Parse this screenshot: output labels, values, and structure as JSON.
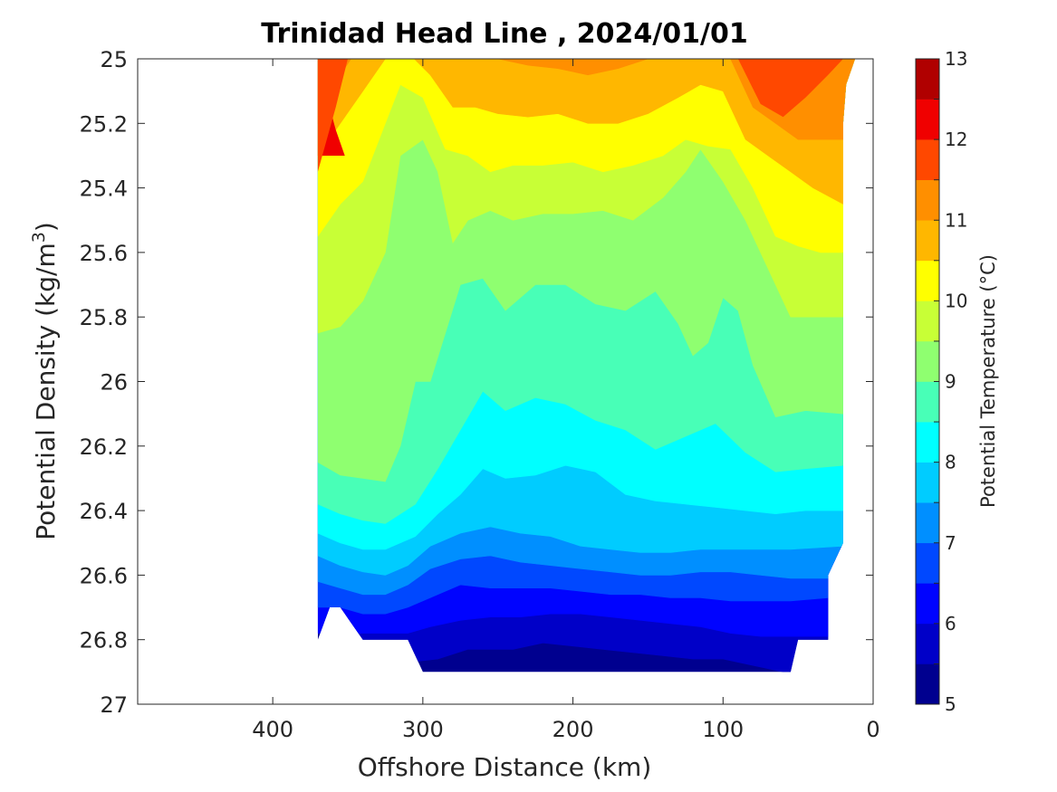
{
  "chart_data": {
    "type": "heatmap",
    "subtype": "filled-contour",
    "title": "Trinidad Head Line , 2024/01/01",
    "xlabel": "Offshore Distance (km)",
    "ylabel": "Potential Density (kg/m",
    "ylabel_superscript": "3",
    "ylabel_suffix": ")",
    "x_reversed": true,
    "y_reversed": true,
    "xlim": [
      490,
      0
    ],
    "ylim": [
      25,
      27
    ],
    "xticks": [
      400,
      300,
      200,
      100,
      0
    ],
    "xtick_labels": [
      "400",
      "300",
      "200",
      "100",
      "0"
    ],
    "yticks": [
      25,
      25.2,
      25.4,
      25.6,
      25.8,
      26,
      26.2,
      26.4,
      26.6,
      26.8,
      27
    ],
    "ytick_labels": [
      "25",
      "25.2",
      "25.4",
      "25.6",
      "25.8",
      "26",
      "26.2",
      "26.4",
      "26.6",
      "26.8",
      "27"
    ],
    "colorbar": {
      "label": "Potential Temperature (°C)",
      "range": [
        5,
        13
      ],
      "ticks": [
        5,
        6,
        7,
        8,
        9,
        10,
        11,
        12,
        13
      ],
      "tick_labels": [
        "5",
        "6",
        "7",
        "8",
        "9",
        "10",
        "11",
        "12",
        "13"
      ],
      "levels": [
        5,
        5.5,
        6,
        6.5,
        7,
        7.5,
        8,
        8.5,
        9,
        9.5,
        10,
        10.5,
        11,
        11.5,
        12,
        12.5,
        13
      ],
      "colors": [
        "#00008f",
        "#0000c8",
        "#0003ff",
        "#0048ff",
        "#008fff",
        "#00ccff",
        "#00ffff",
        "#48ffb7",
        "#8fff70",
        "#c8ff36",
        "#ffff00",
        "#ffb700",
        "#ff8f00",
        "#ff4800",
        "#f00000",
        "#b00000"
      ]
    },
    "data_extent": {
      "x_range_km": [
        20,
        370
      ],
      "density_range": [
        25,
        26.9
      ]
    },
    "boundaries": [
      {
        "level": 12.0,
        "points": [
          [
            370,
            25.0
          ],
          [
            365,
            25.1
          ],
          [
            358,
            25.22
          ],
          [
            352,
            25.3
          ]
        ]
      },
      {
        "level": 11.5,
        "points": [
          [
            350,
            25.0
          ],
          [
            358,
            25.15
          ],
          [
            364,
            25.25
          ],
          [
            370,
            25.35
          ]
        ]
      }
    ],
    "contours": [
      {
        "level": 5.5,
        "points": [
          [
            310,
            26.87
          ],
          [
            290,
            26.86
          ],
          [
            270,
            26.83
          ],
          [
            240,
            26.83
          ],
          [
            220,
            26.81
          ],
          [
            200,
            26.82
          ],
          [
            180,
            26.83
          ],
          [
            160,
            26.84
          ],
          [
            140,
            26.85
          ],
          [
            120,
            26.86
          ],
          [
            100,
            26.86
          ],
          [
            80,
            26.88
          ],
          [
            60,
            26.9
          ]
        ]
      },
      {
        "level": 6.0,
        "points": [
          [
            330,
            26.78
          ],
          [
            310,
            26.78
          ],
          [
            295,
            26.76
          ],
          [
            275,
            26.74
          ],
          [
            255,
            26.73
          ],
          [
            235,
            26.73
          ],
          [
            215,
            26.72
          ],
          [
            195,
            26.72
          ],
          [
            175,
            26.73
          ],
          [
            155,
            26.74
          ],
          [
            135,
            26.75
          ],
          [
            115,
            26.76
          ],
          [
            95,
            26.78
          ],
          [
            75,
            26.79
          ],
          [
            55,
            26.79
          ],
          [
            40,
            26.79
          ],
          [
            30,
            26.79
          ]
        ]
      },
      {
        "level": 6.5,
        "points": [
          [
            370,
            26.7
          ],
          [
            355,
            26.7
          ],
          [
            340,
            26.72
          ],
          [
            325,
            26.72
          ],
          [
            310,
            26.7
          ],
          [
            295,
            26.67
          ],
          [
            275,
            26.63
          ],
          [
            255,
            26.64
          ],
          [
            235,
            26.64
          ],
          [
            215,
            26.64
          ],
          [
            195,
            26.65
          ],
          [
            175,
            26.66
          ],
          [
            155,
            26.66
          ],
          [
            135,
            26.67
          ],
          [
            115,
            26.67
          ],
          [
            95,
            26.68
          ],
          [
            75,
            26.68
          ],
          [
            55,
            26.68
          ],
          [
            30,
            26.67
          ]
        ]
      },
      {
        "level": 7.0,
        "points": [
          [
            370,
            26.62
          ],
          [
            355,
            26.64
          ],
          [
            340,
            26.66
          ],
          [
            325,
            26.66
          ],
          [
            310,
            26.63
          ],
          [
            295,
            26.58
          ],
          [
            275,
            26.55
          ],
          [
            255,
            26.54
          ],
          [
            235,
            26.56
          ],
          [
            215,
            26.57
          ],
          [
            195,
            26.58
          ],
          [
            175,
            26.59
          ],
          [
            155,
            26.6
          ],
          [
            135,
            26.6
          ],
          [
            115,
            26.59
          ],
          [
            95,
            26.59
          ],
          [
            75,
            26.6
          ],
          [
            55,
            26.61
          ],
          [
            25,
            26.61
          ]
        ]
      },
      {
        "level": 7.5,
        "points": [
          [
            370,
            26.54
          ],
          [
            355,
            26.57
          ],
          [
            340,
            26.59
          ],
          [
            325,
            26.6
          ],
          [
            310,
            26.57
          ],
          [
            295,
            26.51
          ],
          [
            275,
            26.47
          ],
          [
            255,
            26.45
          ],
          [
            235,
            26.47
          ],
          [
            215,
            26.48
          ],
          [
            195,
            26.51
          ],
          [
            175,
            26.52
          ],
          [
            155,
            26.53
          ],
          [
            135,
            26.53
          ],
          [
            115,
            26.52
          ],
          [
            95,
            26.52
          ],
          [
            75,
            26.52
          ],
          [
            55,
            26.52
          ],
          [
            20,
            26.51
          ]
        ]
      },
      {
        "level": 8.0,
        "points": [
          [
            370,
            26.47
          ],
          [
            355,
            26.5
          ],
          [
            340,
            26.52
          ],
          [
            325,
            26.52
          ],
          [
            305,
            26.48
          ],
          [
            290,
            26.41
          ],
          [
            275,
            26.35
          ],
          [
            260,
            26.27
          ],
          [
            245,
            26.3
          ],
          [
            225,
            26.29
          ],
          [
            205,
            26.26
          ],
          [
            185,
            26.28
          ],
          [
            165,
            26.35
          ],
          [
            145,
            26.37
          ],
          [
            125,
            26.38
          ],
          [
            105,
            26.39
          ],
          [
            85,
            26.4
          ],
          [
            65,
            26.41
          ],
          [
            45,
            26.4
          ],
          [
            20,
            26.4
          ]
        ]
      },
      {
        "level": 8.5,
        "points": [
          [
            370,
            26.38
          ],
          [
            355,
            26.41
          ],
          [
            340,
            26.43
          ],
          [
            325,
            26.44
          ],
          [
            305,
            26.38
          ],
          [
            290,
            26.27
          ],
          [
            275,
            26.15
          ],
          [
            260,
            26.03
          ],
          [
            245,
            26.09
          ],
          [
            225,
            26.05
          ],
          [
            205,
            26.07
          ],
          [
            185,
            26.12
          ],
          [
            165,
            26.15
          ],
          [
            145,
            26.21
          ],
          [
            125,
            26.17
          ],
          [
            105,
            26.13
          ],
          [
            85,
            26.22
          ],
          [
            65,
            26.28
          ],
          [
            45,
            26.27
          ],
          [
            20,
            26.26
          ]
        ]
      },
      {
        "level": 9.0,
        "points": [
          [
            370,
            26.25
          ],
          [
            355,
            26.29
          ],
          [
            340,
            26.3
          ],
          [
            325,
            26.31
          ],
          [
            315,
            26.2
          ],
          [
            305,
            26.0
          ],
          [
            295,
            26.0
          ],
          [
            285,
            25.85
          ],
          [
            275,
            25.7
          ],
          [
            260,
            25.68
          ],
          [
            245,
            25.78
          ],
          [
            225,
            25.7
          ],
          [
            205,
            25.7
          ],
          [
            185,
            25.76
          ],
          [
            165,
            25.78
          ],
          [
            145,
            25.72
          ],
          [
            130,
            25.82
          ],
          [
            120,
            25.92
          ],
          [
            110,
            25.88
          ],
          [
            100,
            25.74
          ],
          [
            90,
            25.78
          ],
          [
            80,
            25.95
          ],
          [
            65,
            26.11
          ],
          [
            45,
            26.09
          ],
          [
            20,
            26.1
          ]
        ]
      },
      {
        "level": 9.5,
        "points": [
          [
            370,
            25.85
          ],
          [
            355,
            25.83
          ],
          [
            340,
            25.75
          ],
          [
            325,
            25.6
          ],
          [
            315,
            25.3
          ],
          [
            300,
            25.25
          ],
          [
            290,
            25.35
          ],
          [
            280,
            25.57
          ],
          [
            270,
            25.5
          ],
          [
            255,
            25.47
          ],
          [
            240,
            25.5
          ],
          [
            220,
            25.48
          ],
          [
            200,
            25.48
          ],
          [
            180,
            25.47
          ],
          [
            160,
            25.5
          ],
          [
            140,
            25.43
          ],
          [
            125,
            25.35
          ],
          [
            115,
            25.28
          ],
          [
            100,
            25.38
          ],
          [
            85,
            25.5
          ],
          [
            70,
            25.65
          ],
          [
            55,
            25.8
          ],
          [
            40,
            25.8
          ],
          [
            20,
            25.8
          ]
        ]
      },
      {
        "level": 10.0,
        "points": [
          [
            370,
            25.55
          ],
          [
            355,
            25.45
          ],
          [
            340,
            25.38
          ],
          [
            325,
            25.2
          ],
          [
            315,
            25.08
          ],
          [
            300,
            25.12
          ],
          [
            285,
            25.28
          ],
          [
            270,
            25.3
          ],
          [
            255,
            25.35
          ],
          [
            240,
            25.33
          ],
          [
            220,
            25.33
          ],
          [
            200,
            25.32
          ],
          [
            180,
            25.35
          ],
          [
            160,
            25.33
          ],
          [
            140,
            25.3
          ],
          [
            125,
            25.25
          ],
          [
            110,
            25.27
          ],
          [
            95,
            25.28
          ],
          [
            80,
            25.4
          ],
          [
            65,
            25.55
          ],
          [
            50,
            25.58
          ],
          [
            35,
            25.6
          ],
          [
            20,
            25.6
          ]
        ]
      },
      {
        "level": 10.5,
        "points": [
          [
            370,
            25.3
          ],
          [
            355,
            25.2
          ],
          [
            340,
            25.1
          ],
          [
            325,
            25.0
          ],
          [
            310,
            24.98
          ],
          [
            295,
            25.05
          ],
          [
            280,
            25.15
          ],
          [
            265,
            25.15
          ],
          [
            250,
            25.17
          ],
          [
            230,
            25.18
          ],
          [
            210,
            25.17
          ],
          [
            190,
            25.2
          ],
          [
            170,
            25.2
          ],
          [
            150,
            25.17
          ],
          [
            130,
            25.12
          ],
          [
            115,
            25.08
          ],
          [
            100,
            25.1
          ],
          [
            85,
            25.25
          ],
          [
            70,
            25.3
          ],
          [
            55,
            25.35
          ],
          [
            40,
            25.4
          ],
          [
            20,
            25.45
          ]
        ]
      },
      {
        "level": 11.0,
        "points": [
          [
            370,
            25.2
          ],
          [
            355,
            25.05
          ],
          [
            345,
            24.98
          ],
          [
            330,
            24.95
          ],
          [
            310,
            24.9
          ],
          [
            290,
            24.95
          ],
          [
            270,
            25.0
          ],
          [
            250,
            25.0
          ],
          [
            230,
            25.02
          ],
          [
            210,
            25.03
          ],
          [
            190,
            25.05
          ],
          [
            170,
            25.03
          ],
          [
            150,
            25.0
          ],
          [
            130,
            24.98
          ],
          [
            110,
            24.96
          ],
          [
            95,
            25.0
          ],
          [
            80,
            25.15
          ],
          [
            65,
            25.2
          ],
          [
            50,
            25.25
          ],
          [
            35,
            25.25
          ],
          [
            20,
            25.25
          ]
        ]
      }
    ],
    "top_blobs": [
      {
        "level": 12.0,
        "points": [
          [
            65,
            25.0
          ],
          [
            70,
            25.08
          ],
          [
            55,
            25.06
          ],
          [
            50,
            25.0
          ]
        ]
      },
      {
        "level": 11.5,
        "points": [
          [
            90,
            25.0
          ],
          [
            75,
            25.14
          ],
          [
            60,
            25.18
          ],
          [
            45,
            25.12
          ],
          [
            30,
            25.05
          ],
          [
            20,
            25.0
          ]
        ]
      }
    ]
  }
}
